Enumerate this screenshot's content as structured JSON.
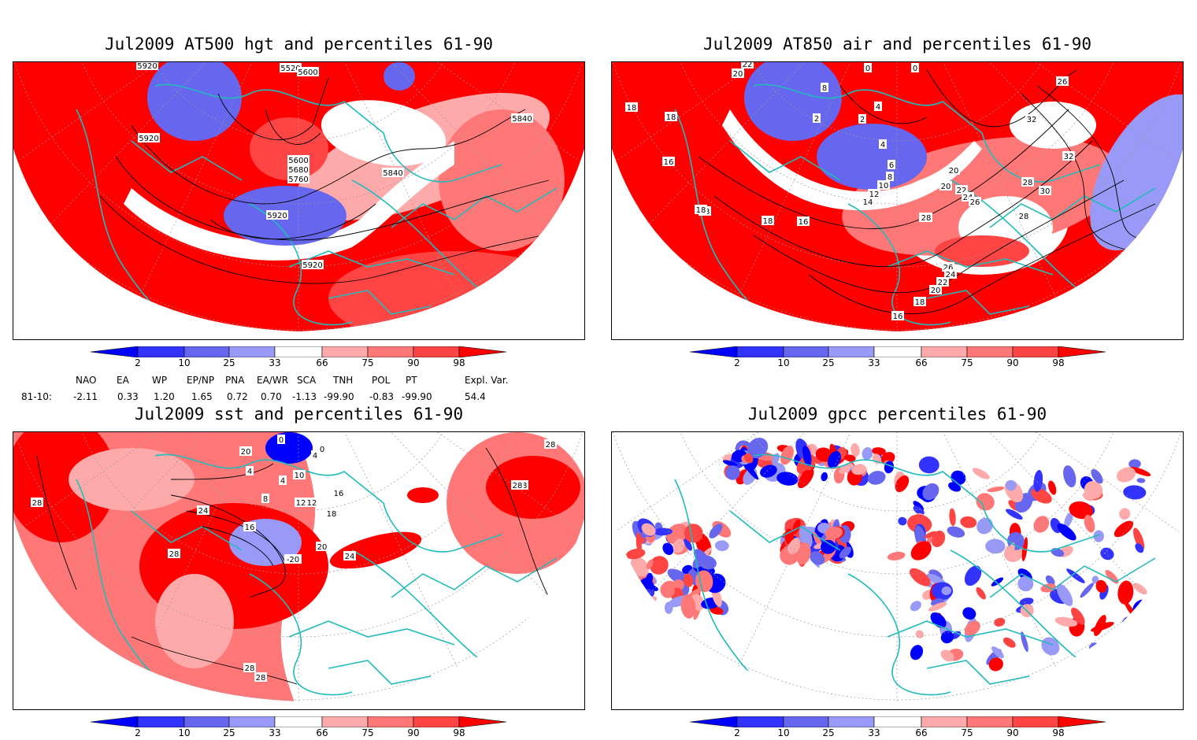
{
  "panels": [
    {
      "id": "p1",
      "title": "Jul2009 AT500 hgt and percentiles 61-90",
      "contour_labels": [
        "5920",
        "5520",
        "5600",
        "5920",
        "5840",
        "5600",
        "5680",
        "5760",
        "5840",
        "5920",
        "5920"
      ]
    },
    {
      "id": "p2",
      "title": "Jul2009 AT850 air and percentiles 61-90",
      "contour_labels": [
        "22",
        "20",
        "0",
        "0",
        "18",
        "8",
        "4",
        "2",
        "16",
        "18",
        "4",
        "2",
        "26",
        "32",
        "32",
        "20",
        "6",
        "8",
        "10",
        "12",
        "14",
        "18",
        "18",
        "30",
        "28",
        "20",
        "22",
        "24",
        "26",
        "28",
        "30",
        "28",
        "26",
        "24",
        "22",
        "20",
        "18",
        "16",
        "18",
        "16"
      ]
    },
    {
      "id": "p3",
      "title": "Jul2009 sst and percentiles 61-90",
      "contour_labels": [
        "0",
        "20",
        "4",
        "0",
        "12",
        "4",
        "10",
        "4",
        "28",
        "16",
        "8",
        "12",
        "28",
        "24",
        "16",
        "18",
        "28",
        "20",
        "24",
        "28",
        "28",
        "28",
        "28",
        "-20"
      ]
    },
    {
      "id": "p4",
      "title": "Jul2009 gpcc percentiles 61-90",
      "contour_labels": []
    }
  ],
  "colorbar": {
    "labels": [
      "2",
      "10",
      "25",
      "33",
      "66",
      "75",
      "90",
      "98"
    ],
    "colors": {
      "d1": "#0000ff",
      "d2": "#3333ff",
      "d3": "#6666ee",
      "d4": "#9999f8",
      "l1": "#ffaaaa",
      "l2": "#ff7777",
      "l3": "#ff4444",
      "l4": "#ff0000"
    }
  },
  "teleconnection": {
    "headers": [
      "NAO",
      "EA",
      "WP",
      "EP/NP",
      "PNA",
      "EA/WR",
      "SCA",
      "TNH",
      "POL",
      "PT",
      "Expl. Var."
    ],
    "row_label": "81-10:",
    "values": [
      "-2.11",
      "0.33",
      "1.20",
      "1.65",
      "0.72",
      "0.70",
      "-1.13",
      "-99.90",
      "-0.83",
      "-99.90",
      "54.4"
    ]
  },
  "colors": {
    "land_line": "#22bbbb",
    "contour": "#000000",
    "frame": "#000000"
  }
}
